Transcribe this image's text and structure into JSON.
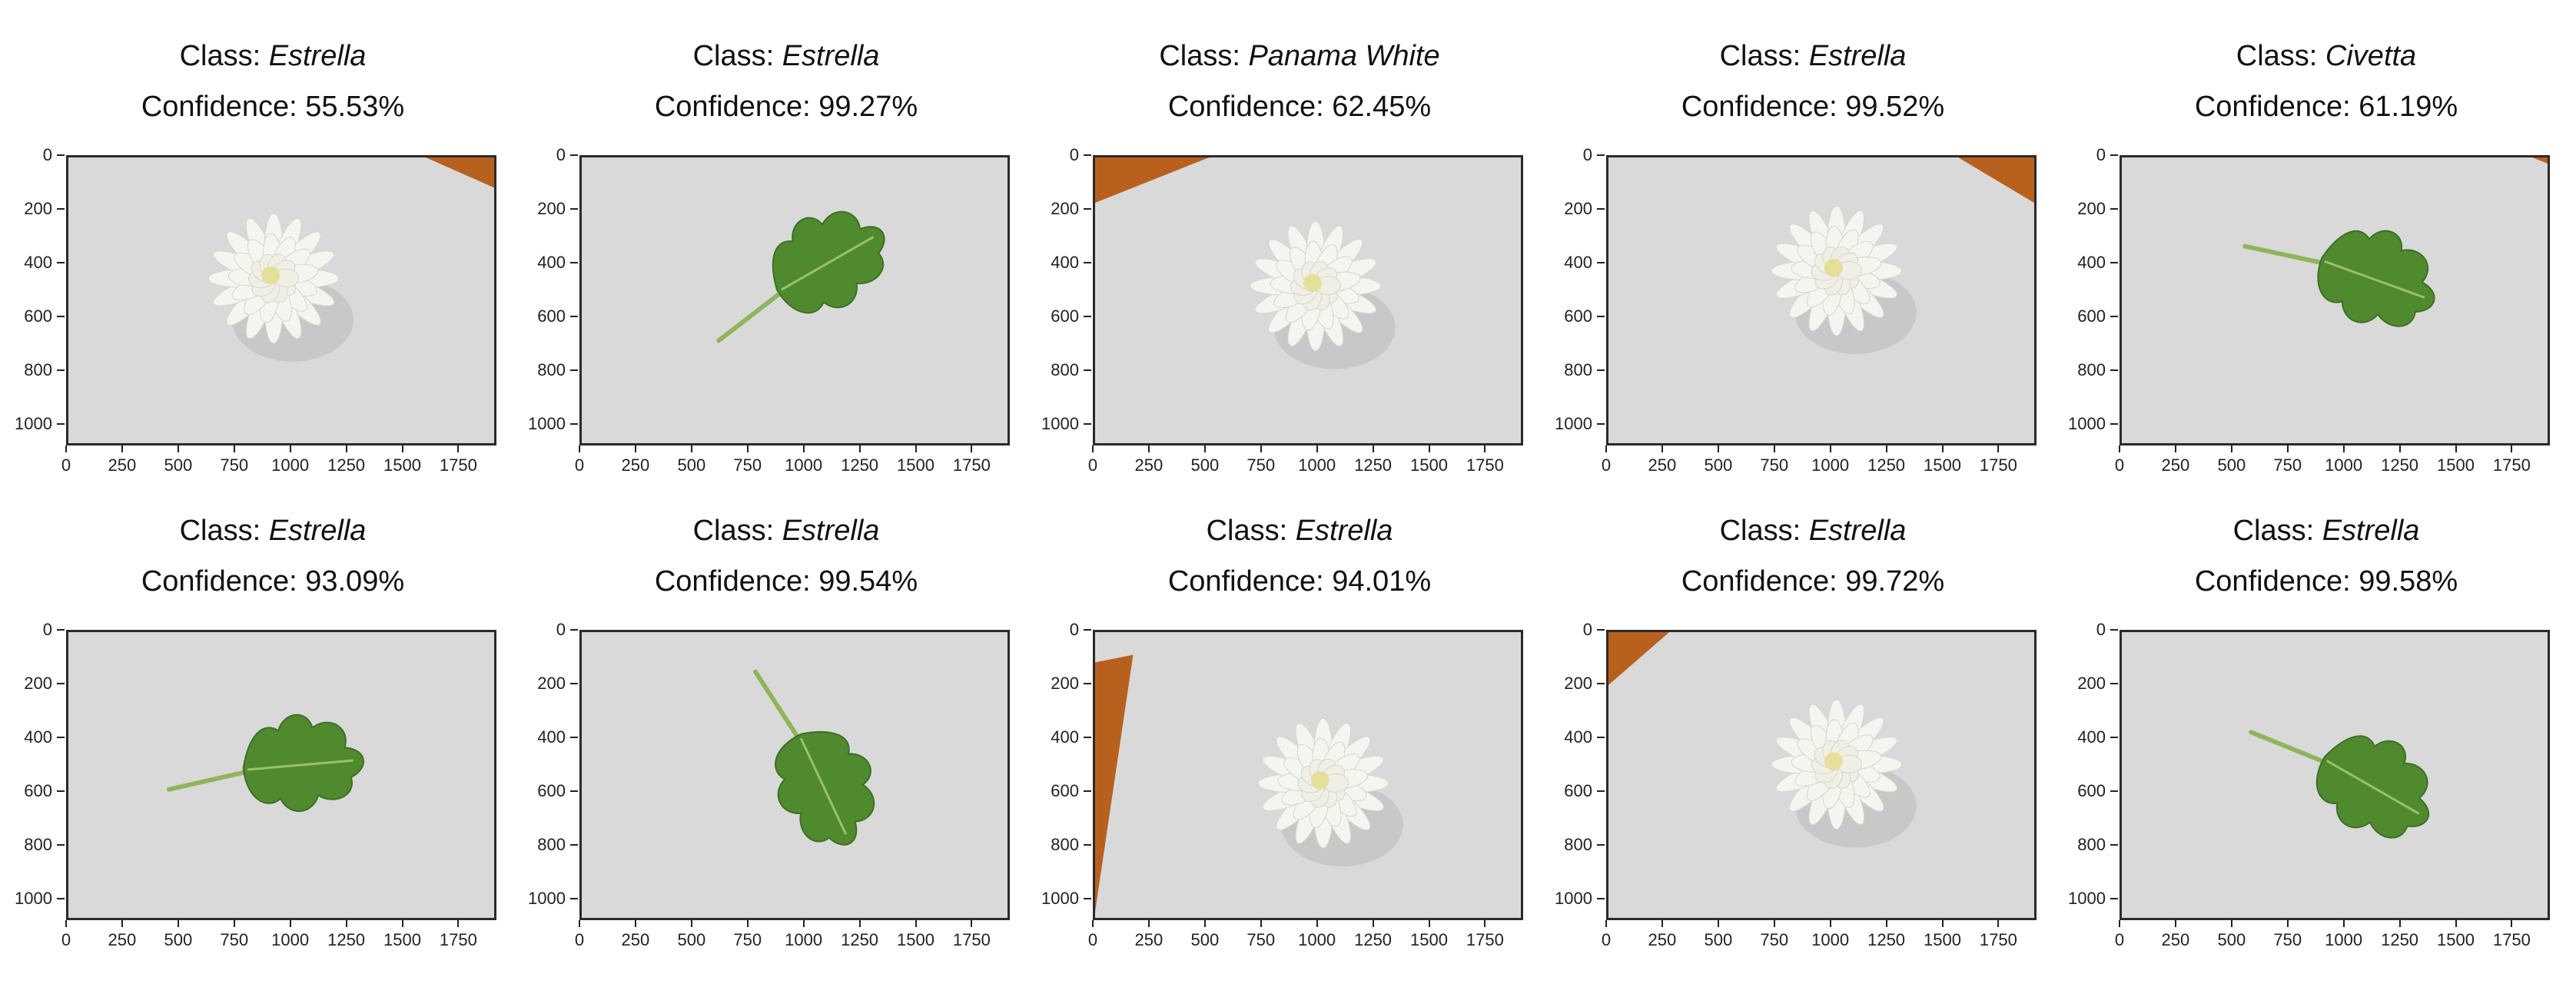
{
  "class_label": "Class: ",
  "confidence_label": "Confidence: ",
  "y_ticks": [
    "0",
    "200",
    "400",
    "600",
    "800",
    "1000"
  ],
  "x_ticks": [
    "0",
    "250",
    "500",
    "750",
    "1000",
    "1250",
    "1500",
    "1750"
  ],
  "colors": {
    "background": "#d9d9d9",
    "leaf": "#4f8a2e",
    "flower": "#f4f4f0",
    "table_edge": "#b8611f"
  },
  "panels": [
    {
      "class": "Estrella",
      "confidence": "55.53%",
      "subject": "flower"
    },
    {
      "class": "Estrella",
      "confidence": "99.27%",
      "subject": "leaf"
    },
    {
      "class": "Panama White",
      "confidence": "62.45%",
      "subject": "flower"
    },
    {
      "class": "Estrella",
      "confidence": "99.52%",
      "subject": "flower"
    },
    {
      "class": "Civetta",
      "confidence": "61.19%",
      "subject": "leaf"
    },
    {
      "class": "Estrella",
      "confidence": "93.09%",
      "subject": "leaf"
    },
    {
      "class": "Estrella",
      "confidence": "99.54%",
      "subject": "leaf"
    },
    {
      "class": "Estrella",
      "confidence": "94.01%",
      "subject": "flower"
    },
    {
      "class": "Estrella",
      "confidence": "99.72%",
      "subject": "flower"
    },
    {
      "class": "Estrella",
      "confidence": "99.58%",
      "subject": "leaf"
    }
  ]
}
